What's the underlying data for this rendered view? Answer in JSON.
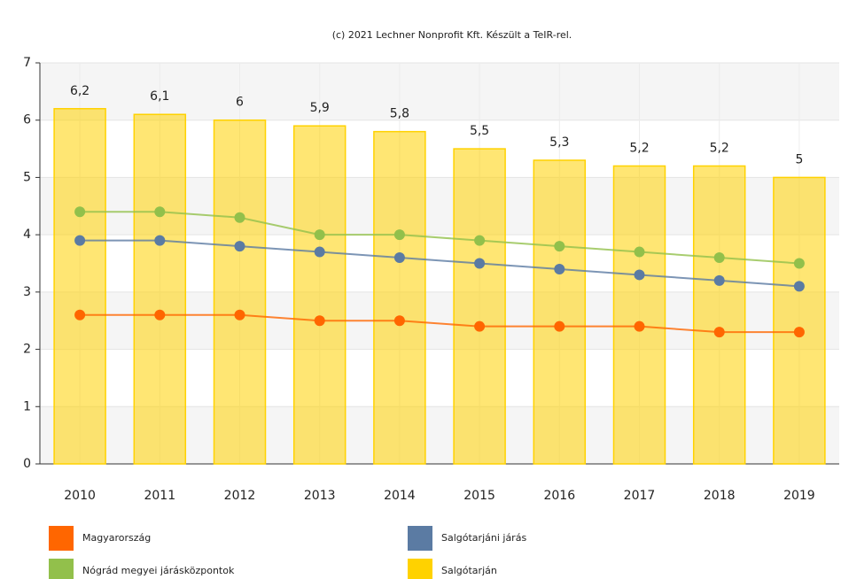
{
  "chart_data": {
    "type": "combo",
    "title": "(c) 2021 Lechner Nonprofit Kft. Készült a TeIR-rel.",
    "categories": [
      "2010",
      "2011",
      "2012",
      "2013",
      "2014",
      "2015",
      "2016",
      "2017",
      "2018",
      "2019"
    ],
    "series": [
      {
        "name": "Magyarország",
        "type": "line",
        "color": "#ff6600",
        "values": [
          2.6,
          2.6,
          2.6,
          2.5,
          2.5,
          2.4,
          2.4,
          2.4,
          2.3,
          2.3
        ]
      },
      {
        "name": "Salgótarjáni járás",
        "type": "line",
        "color": "#5b7ba3",
        "values": [
          3.9,
          3.9,
          3.8,
          3.7,
          3.6,
          3.5,
          3.4,
          3.3,
          3.2,
          3.1
        ]
      },
      {
        "name": "Nógrád megyei járásközpontok",
        "type": "line",
        "color": "#92c04b",
        "values": [
          4.4,
          4.4,
          4.3,
          4.0,
          4.0,
          3.9,
          3.8,
          3.7,
          3.6,
          3.5
        ]
      },
      {
        "name": "Salgótarján",
        "type": "bar",
        "color": "#ffd200",
        "values": [
          6.2,
          6.1,
          6,
          5.9,
          5.8,
          5.5,
          5.3,
          5.2,
          5.2,
          5
        ],
        "value_labels": [
          "6,2",
          "6,1",
          "6",
          "5,9",
          "5,8",
          "5,5",
          "5,3",
          "5,2",
          "5,2",
          "5"
        ]
      }
    ],
    "ylim": [
      0,
      7
    ],
    "yticks": [
      0,
      1,
      2,
      3,
      4,
      5,
      6,
      7
    ],
    "grid": true
  }
}
